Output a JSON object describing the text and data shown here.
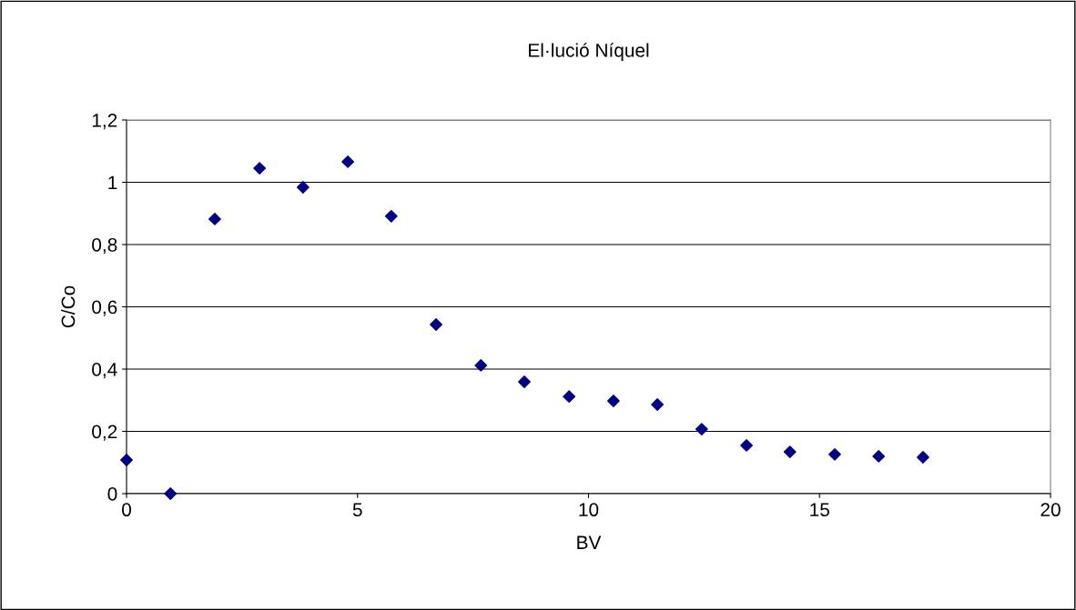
{
  "chart_data": {
    "type": "scatter",
    "title": "El·lució Níquel",
    "xlabel": "BV",
    "ylabel": "C/Co",
    "x": [
      0,
      0.95,
      1.91,
      2.88,
      3.82,
      4.79,
      5.73,
      6.7,
      7.67,
      8.61,
      9.58,
      10.54,
      11.49,
      12.45,
      13.42,
      14.36,
      15.33,
      16.28,
      17.24
    ],
    "values": [
      0.108,
      0,
      0.882,
      1.045,
      0.984,
      1.066,
      0.891,
      0.543,
      0.412,
      0.359,
      0.312,
      0.298,
      0.286,
      0.207,
      0.155,
      0.134,
      0.126,
      0.12,
      0.117
    ],
    "color": "#000080",
    "marker": "diamond",
    "grid": "y",
    "xlim": [
      0,
      20
    ],
    "xticks": [
      0,
      5,
      10,
      15,
      20
    ],
    "ylim": [
      0,
      1.2
    ],
    "yticks": [
      0,
      {
        "value": 0.2,
        "label": "0,2"
      },
      {
        "value": 0.4,
        "label": "0,4"
      },
      {
        "value": 0.6,
        "label": "0,6"
      },
      {
        "value": 0.8,
        "label": "0,8"
      },
      1,
      {
        "value": 1.2,
        "label": "1,2"
      }
    ]
  }
}
